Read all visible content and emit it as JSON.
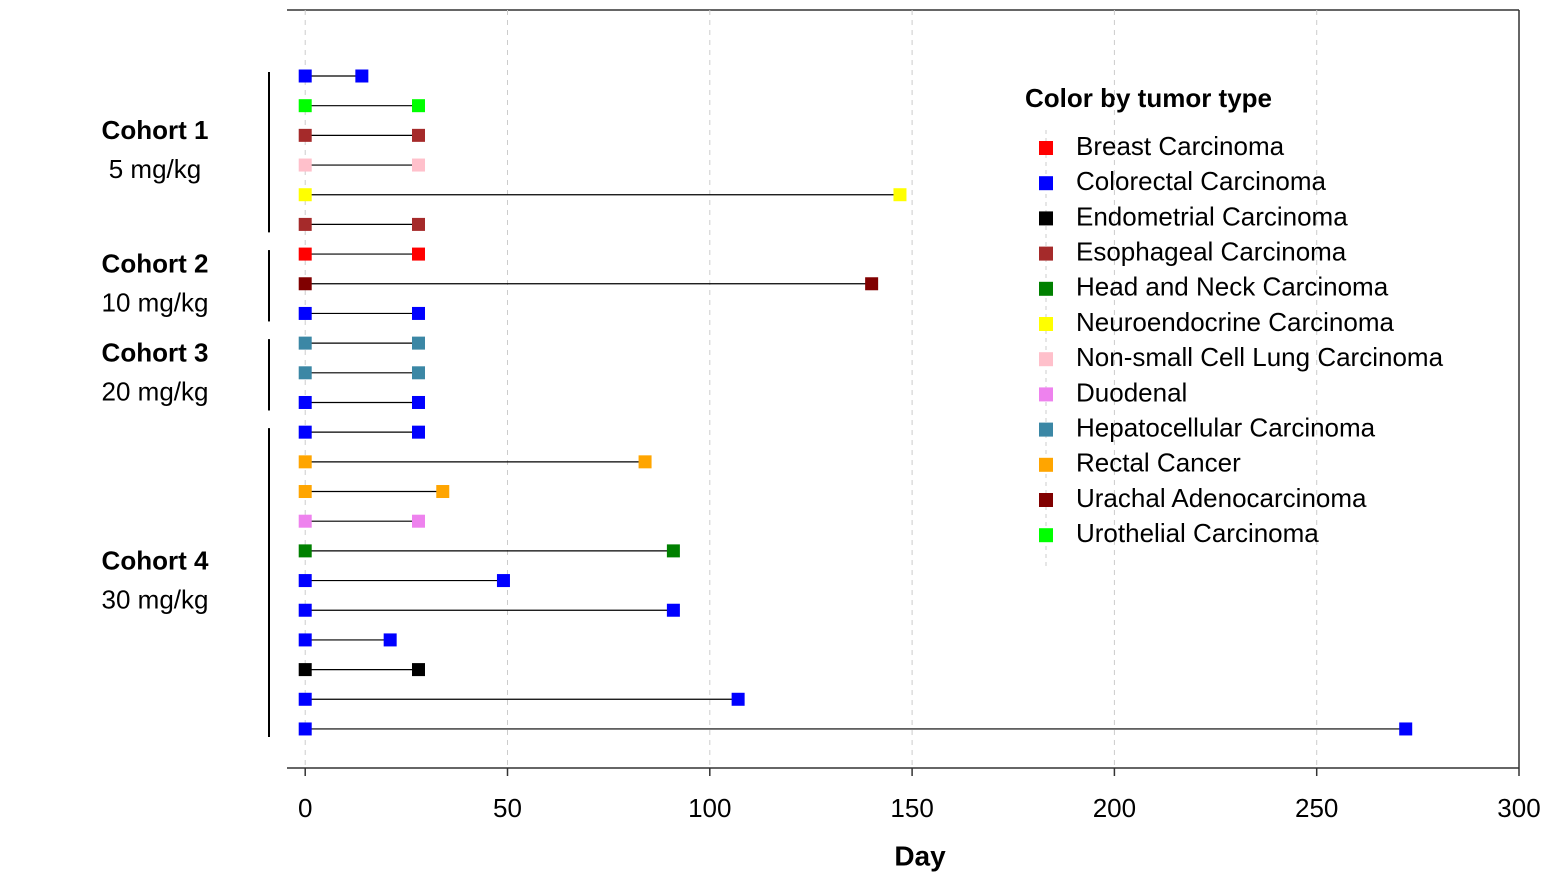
{
  "chart_data": {
    "type": "swimmer",
    "x_label": "Day",
    "xlim": [
      -4.5,
      300
    ],
    "xticks": [
      0,
      50,
      100,
      150,
      200,
      250,
      300
    ],
    "grid": true,
    "legend": {
      "title": "Color by tumor type",
      "items": [
        {
          "name": "Breast Carcinoma",
          "color": "#ff0000"
        },
        {
          "name": "Colorectal Carcinoma",
          "color": "#0000ff"
        },
        {
          "name": "Endometrial Carcinoma",
          "color": "#000000"
        },
        {
          "name": "Esophageal Carcinoma",
          "color": "#a52a2a"
        },
        {
          "name": "Head and Neck Carcinoma",
          "color": "#008000"
        },
        {
          "name": "Neuroendocrine Carcinoma",
          "color": "#ffff00"
        },
        {
          "name": "Non-small Cell Lung Carcinoma",
          "color": "#ffc0cb"
        },
        {
          "name": "Duodenal",
          "color": "#ee82ee"
        },
        {
          "name": "Hepatocellular Carcinoma",
          "color": "#3b87a5"
        },
        {
          "name": "Rectal Cancer",
          "color": "#ffa500"
        },
        {
          "name": "Urachal Adenocarcinoma",
          "color": "#800000"
        },
        {
          "name": "Urothelial Carcinoma",
          "color": "#00ff00"
        }
      ]
    },
    "cohorts": [
      {
        "name": "Cohort 1",
        "dose": "5 mg/kg",
        "patients": [
          {
            "tumor": "Colorectal Carcinoma",
            "start": 0,
            "end": 14
          },
          {
            "tumor": "Urothelial Carcinoma",
            "start": 0,
            "end": 28
          },
          {
            "tumor": "Esophageal Carcinoma",
            "start": 0,
            "end": 28
          },
          {
            "tumor": "Non-small Cell Lung Carcinoma",
            "start": 0,
            "end": 28
          },
          {
            "tumor": "Neuroendocrine Carcinoma",
            "start": 0,
            "end": 147
          },
          {
            "tumor": "Esophageal Carcinoma",
            "start": 0,
            "end": 28
          }
        ]
      },
      {
        "name": "Cohort 2",
        "dose": "10 mg/kg",
        "patients": [
          {
            "tumor": "Breast Carcinoma",
            "start": 0,
            "end": 28
          },
          {
            "tumor": "Urachal Adenocarcinoma",
            "start": 0,
            "end": 140
          },
          {
            "tumor": "Colorectal Carcinoma",
            "start": 0,
            "end": 28
          }
        ]
      },
      {
        "name": "Cohort 3",
        "dose": "20 mg/kg",
        "patients": [
          {
            "tumor": "Hepatocellular Carcinoma",
            "start": 0,
            "end": 28
          },
          {
            "tumor": "Hepatocellular Carcinoma",
            "start": 0,
            "end": 28
          },
          {
            "tumor": "Colorectal Carcinoma",
            "start": 0,
            "end": 28
          }
        ]
      },
      {
        "name": "Cohort 4",
        "dose": "30 mg/kg",
        "patients": [
          {
            "tumor": "Colorectal Carcinoma",
            "start": 0,
            "end": 28
          },
          {
            "tumor": "Rectal Cancer",
            "start": 0,
            "end": 84
          },
          {
            "tumor": "Rectal Cancer",
            "start": 0,
            "end": 34
          },
          {
            "tumor": "Duodenal",
            "start": 0,
            "end": 28
          },
          {
            "tumor": "Head and Neck Carcinoma",
            "start": 0,
            "end": 91
          },
          {
            "tumor": "Colorectal Carcinoma",
            "start": 0,
            "end": 49
          },
          {
            "tumor": "Colorectal Carcinoma",
            "start": 0,
            "end": 91
          },
          {
            "tumor": "Colorectal Carcinoma",
            "start": 0,
            "end": 21
          },
          {
            "tumor": "Endometrial Carcinoma",
            "start": 0,
            "end": 28
          },
          {
            "tumor": "Colorectal Carcinoma",
            "start": 0,
            "end": 107
          },
          {
            "tumor": "Colorectal Carcinoma",
            "start": 0,
            "end": 272
          }
        ]
      }
    ]
  }
}
